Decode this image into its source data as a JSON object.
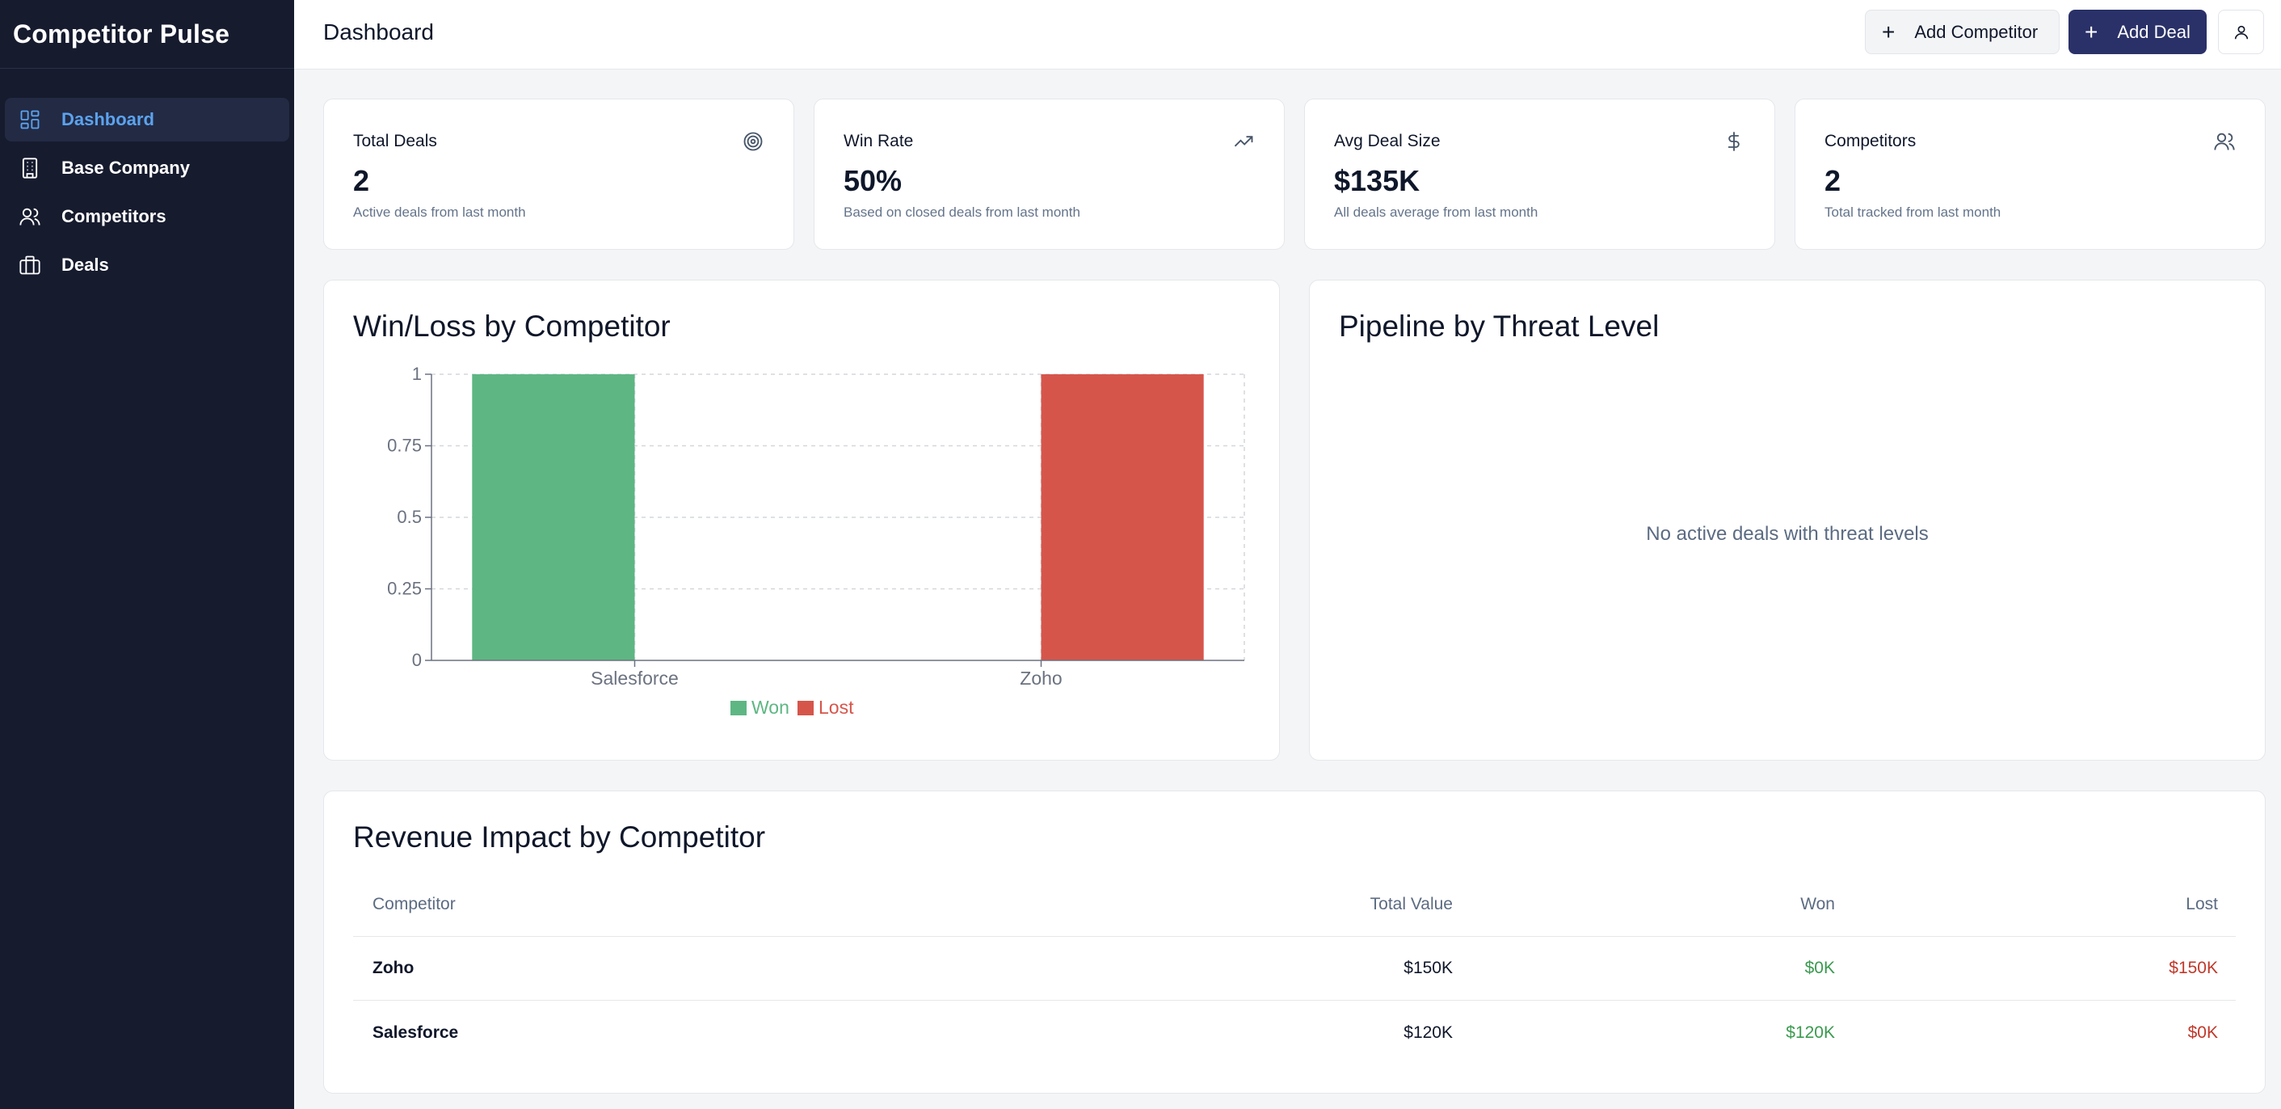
{
  "app": {
    "name": "Competitor Pulse"
  },
  "sidebar": {
    "items": [
      {
        "label": "Dashboard",
        "icon": "dashboard-icon",
        "active": true
      },
      {
        "label": "Base Company",
        "icon": "building-icon",
        "active": false
      },
      {
        "label": "Competitors",
        "icon": "users-icon",
        "active": false
      },
      {
        "label": "Deals",
        "icon": "briefcase-icon",
        "active": false
      }
    ]
  },
  "header": {
    "title": "Dashboard",
    "add_competitor_label": "Add Competitor",
    "add_deal_label": "Add Deal",
    "user_icon": "user-icon"
  },
  "stats": [
    {
      "title": "Total Deals",
      "value": "2",
      "sub": "Active deals from last month",
      "icon": "target-icon"
    },
    {
      "title": "Win Rate",
      "value": "50%",
      "sub": "Based on closed deals from last month",
      "icon": "trending-up-icon"
    },
    {
      "title": "Avg Deal Size",
      "value": "$135K",
      "sub": "All deals average from last month",
      "icon": "dollar-icon"
    },
    {
      "title": "Competitors",
      "value": "2",
      "sub": "Total tracked from last month",
      "icon": "users-icon"
    }
  ],
  "winloss": {
    "title": "Win/Loss by Competitor"
  },
  "pipeline": {
    "title": "Pipeline by Threat Level",
    "empty_message": "No active deals with threat levels"
  },
  "revenue": {
    "title": "Revenue Impact by Competitor",
    "columns": [
      "Competitor",
      "Total Value",
      "Won",
      "Lost"
    ],
    "rows": [
      [
        "Zoho",
        "$150K",
        "$0K",
        "$150K"
      ],
      [
        "Salesforce",
        "$120K",
        "$120K",
        "$0K"
      ]
    ]
  },
  "colors": {
    "won": "#5eb683",
    "lost": "#d6554b",
    "accent": "#2a3168",
    "sidebar_bg": "#161b2e"
  },
  "chart_data": {
    "type": "bar",
    "title": "Win/Loss by Competitor",
    "categories": [
      "Salesforce",
      "Zoho"
    ],
    "series": [
      {
        "name": "Won",
        "values": [
          1,
          0
        ],
        "color": "#5eb683"
      },
      {
        "name": "Lost",
        "values": [
          0,
          1
        ],
        "color": "#d6554b"
      }
    ],
    "ylim": [
      0,
      1
    ],
    "yticks": [
      "0",
      "0.25",
      "0.5",
      "0.75",
      "1"
    ],
    "grid": true,
    "legend": "bottom"
  }
}
